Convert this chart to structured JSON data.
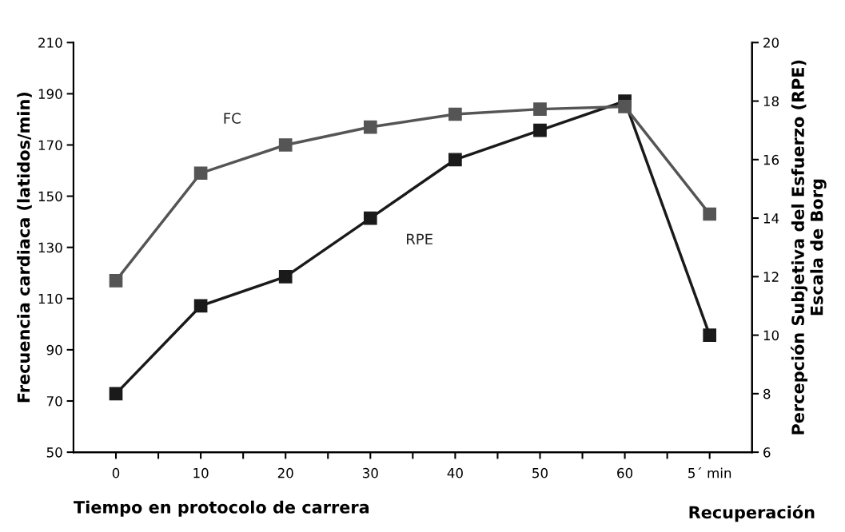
{
  "chart_data": {
    "type": "line",
    "categories": [
      "0",
      "10",
      "20",
      "30",
      "40",
      "50",
      "60",
      "5´ min"
    ],
    "series": [
      {
        "name": "FC",
        "color": "#555555",
        "values": [
          117,
          159,
          170,
          177,
          182,
          184,
          185,
          143
        ]
      },
      {
        "name": "RPE",
        "color": "#1a1a1a",
        "axis": "y2",
        "values": [
          8,
          11,
          12,
          14,
          16,
          17,
          18,
          10
        ]
      }
    ],
    "xlabel": "Tiempo en protocolo de carrera",
    "ylabel": "Frecuencia cardiaca (latidos/min)",
    "y2label": "Percepción Subjetiva del Esfuerzo (RPE)\nEscala de Borg",
    "annotations": [
      "Recuperación"
    ],
    "ylim": [
      50,
      210
    ],
    "yticks": [
      50,
      70,
      90,
      110,
      130,
      150,
      170,
      190,
      210
    ],
    "y2lim": [
      6,
      20
    ],
    "y2ticks": [
      6,
      8,
      10,
      12,
      14,
      16,
      18,
      20
    ],
    "marker": "square",
    "line_style": "solid",
    "grid": false,
    "legend": false
  }
}
